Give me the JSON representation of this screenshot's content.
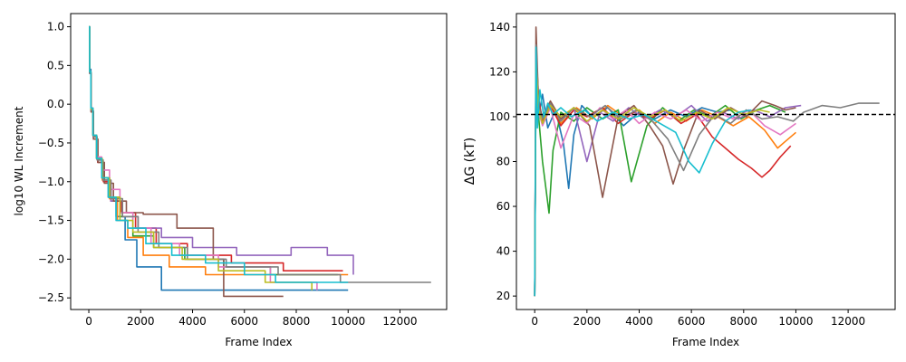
{
  "chart_data": [
    {
      "type": "line",
      "title": "",
      "xlabel": "Frame Index",
      "ylabel": "log10 WL Increment",
      "xlim": [
        -700,
        13800
      ],
      "ylim": [
        -2.65,
        1.17
      ],
      "xticks": [
        0,
        2000,
        4000,
        6000,
        8000,
        10000,
        12000
      ],
      "yticks": [
        -2.5,
        -2.0,
        -1.5,
        -1.0,
        -0.5,
        0.0,
        0.5,
        1.0
      ],
      "yticklabels": [
        "−2.5",
        "−2.0",
        "−1.5",
        "−1.0",
        "−0.5",
        "0.0",
        "0.5",
        "1.0"
      ],
      "grid": false,
      "legend": "none",
      "series": [
        {
          "color": "#1f77b4",
          "x": [
            0,
            30,
            80,
            160,
            300,
            500,
            750,
            1050,
            1400,
            1850,
            2800,
            10000
          ],
          "y": [
            1.0,
            0.45,
            -0.05,
            -0.4,
            -0.7,
            -0.95,
            -1.2,
            -1.45,
            -1.75,
            -2.1,
            -2.4,
            -2.4
          ]
        },
        {
          "color": "#ff7f0e",
          "x": [
            0,
            30,
            80,
            170,
            320,
            520,
            800,
            1100,
            1500,
            2100,
            3100,
            4500,
            10000
          ],
          "y": [
            1.0,
            0.4,
            -0.08,
            -0.42,
            -0.72,
            -0.98,
            -1.22,
            -1.5,
            -1.72,
            -1.95,
            -2.1,
            -2.2,
            -2.2
          ]
        },
        {
          "color": "#2ca02c",
          "x": [
            0,
            30,
            80,
            160,
            300,
            500,
            800,
            1200,
            1700,
            2500,
            3700,
            5200,
            7000,
            9600
          ],
          "y": [
            1.0,
            0.42,
            -0.06,
            -0.4,
            -0.7,
            -0.95,
            -1.2,
            -1.45,
            -1.7,
            -1.85,
            -2.0,
            -2.1,
            -2.2,
            -2.2
          ]
        },
        {
          "color": "#d62728",
          "x": [
            0,
            30,
            90,
            180,
            340,
            560,
            850,
            1250,
            1800,
            2600,
            3800,
            5500,
            7500,
            9800
          ],
          "y": [
            1.0,
            0.4,
            -0.1,
            -0.45,
            -0.75,
            -1.0,
            -1.25,
            -1.4,
            -1.6,
            -1.8,
            -1.95,
            -2.05,
            -2.15,
            -2.15
          ]
        },
        {
          "color": "#9467bd",
          "x": [
            0,
            30,
            80,
            170,
            320,
            550,
            850,
            1300,
            1900,
            2800,
            4000,
            5700,
            7800,
            9200,
            10200
          ],
          "y": [
            1.0,
            0.4,
            -0.08,
            -0.42,
            -0.72,
            -0.98,
            -1.25,
            -1.45,
            -1.6,
            -1.72,
            -1.85,
            -1.95,
            -1.85,
            -1.95,
            -2.2
          ]
        },
        {
          "color": "#8c564b",
          "x": [
            0,
            30,
            90,
            180,
            350,
            600,
            950,
            1450,
            2100,
            3400,
            4800,
            5200,
            7500
          ],
          "y": [
            1.0,
            0.4,
            -0.1,
            -0.45,
            -0.75,
            -1.02,
            -1.25,
            -1.4,
            -1.42,
            -1.6,
            -2.0,
            -2.48,
            -2.48
          ]
        },
        {
          "color": "#e377c2",
          "x": [
            0,
            30,
            80,
            160,
            300,
            500,
            800,
            1200,
            1700,
            2400,
            3500,
            5000,
            7000,
            8800
          ],
          "y": [
            1.0,
            0.42,
            -0.05,
            -0.4,
            -0.68,
            -0.85,
            -1.1,
            -1.4,
            -1.6,
            -1.8,
            -1.95,
            -2.1,
            -2.3,
            -2.4
          ]
        },
        {
          "color": "#7f7f7f",
          "x": [
            0,
            30,
            80,
            170,
            320,
            550,
            850,
            1300,
            1900,
            2700,
            3800,
            5300,
            7300,
            9700,
            10200,
            13200
          ],
          "y": [
            1.0,
            0.4,
            -0.08,
            -0.42,
            -0.72,
            -0.98,
            -1.22,
            -1.45,
            -1.65,
            -1.85,
            -2.0,
            -2.1,
            -2.2,
            -2.3,
            -2.3,
            -2.3
          ]
        },
        {
          "color": "#bcbd22",
          "x": [
            0,
            30,
            80,
            160,
            300,
            520,
            800,
            1200,
            1700,
            2500,
            3600,
            5000,
            6800,
            8600
          ],
          "y": [
            1.0,
            0.42,
            -0.06,
            -0.4,
            -0.7,
            -0.95,
            -1.2,
            -1.5,
            -1.65,
            -1.85,
            -2.0,
            -2.15,
            -2.3,
            -2.4
          ]
        },
        {
          "color": "#17becf",
          "x": [
            0,
            30,
            80,
            160,
            300,
            500,
            750,
            1050,
            1500,
            2200,
            3200,
            4500,
            6000,
            7200,
            10000
          ],
          "y": [
            1.0,
            0.42,
            -0.05,
            -0.4,
            -0.7,
            -0.95,
            -1.2,
            -1.5,
            -1.6,
            -1.8,
            -1.95,
            -2.05,
            -2.2,
            -2.3,
            -2.3
          ]
        }
      ]
    },
    {
      "type": "line",
      "title": "",
      "xlabel": "Frame Index",
      "ylabel": "ΔG (kT)",
      "xlim": [
        -700,
        13800
      ],
      "ylim": [
        14,
        146
      ],
      "xticks": [
        0,
        2000,
        4000,
        6000,
        8000,
        10000,
        12000
      ],
      "yticks": [
        20,
        40,
        60,
        80,
        100,
        120,
        140
      ],
      "reference_line": {
        "y": 101,
        "style": "dashed",
        "color": "#000000"
      },
      "grid": false,
      "legend": "none",
      "series": [
        {
          "color": "#1f77b4",
          "x": [
            0,
            50,
            150,
            300,
            500,
            800,
            1100,
            1300,
            1500,
            1800,
            2200,
            2800,
            3400,
            4000,
            4600,
            5200,
            5800,
            6400,
            7000,
            7500
          ],
          "y": [
            20,
            120,
            100,
            110,
            95,
            103,
            88,
            68,
            92,
            105,
            100,
            104,
            96,
            102,
            99,
            103,
            100,
            104,
            102,
            103
          ]
        },
        {
          "color": "#ff7f0e",
          "x": [
            0,
            50,
            150,
            300,
            600,
            1000,
            1600,
            2200,
            2800,
            3400,
            4000,
            4600,
            5200,
            5800,
            6400,
            7000,
            7600,
            8200,
            8800,
            9300,
            9600,
            10000
          ],
          "y": [
            20,
            125,
            105,
            98,
            106,
            97,
            104,
            99,
            105,
            100,
            103,
            97,
            102,
            98,
            103,
            100,
            96,
            100,
            94,
            86,
            89,
            93
          ]
        },
        {
          "color": "#2ca02c",
          "x": [
            0,
            50,
            150,
            300,
            450,
            550,
            700,
            1000,
            1500,
            2000,
            2600,
            3200,
            3700,
            4300,
            4900,
            5500,
            6100,
            6700,
            7300,
            7900,
            8500,
            9000,
            9600
          ],
          "y": [
            20,
            118,
            100,
            80,
            66,
            57,
            85,
            102,
            98,
            104,
            99,
            103,
            71,
            96,
            104,
            98,
            103,
            100,
            105,
            99,
            103,
            105,
            102
          ]
        },
        {
          "color": "#d62728",
          "x": [
            0,
            50,
            150,
            300,
            600,
            1000,
            1500,
            2000,
            2600,
            3200,
            3800,
            4400,
            5000,
            5600,
            6200,
            6800,
            7300,
            7800,
            8300,
            8700,
            9000,
            9400,
            9800
          ],
          "y": [
            20,
            130,
            108,
            98,
            105,
            96,
            103,
            100,
            104,
            97,
            102,
            99,
            103,
            97,
            101,
            91,
            86,
            81,
            77,
            73,
            76,
            82,
            87
          ]
        },
        {
          "color": "#9467bd",
          "x": [
            0,
            50,
            150,
            300,
            600,
            1000,
            1500,
            2000,
            2500,
            3000,
            3600,
            4200,
            4800,
            5400,
            6000,
            6600,
            7200,
            7800,
            8400,
            9000,
            9600,
            10200
          ],
          "y": [
            20,
            122,
            104,
            100,
            106,
            99,
            104,
            80,
            102,
            98,
            104,
            99,
            103,
            100,
            105,
            98,
            102,
            99,
            103,
            100,
            104,
            105
          ]
        },
        {
          "color": "#8c564b",
          "x": [
            0,
            50,
            150,
            300,
            600,
            1000,
            1500,
            2100,
            2600,
            3200,
            3800,
            4400,
            4900,
            5300,
            5700,
            6300,
            6900,
            7500,
            8100,
            8700,
            9200,
            9600,
            10000
          ],
          "y": [
            20,
            140,
            105,
            100,
            107,
            99,
            104,
            96,
            64,
            100,
            105,
            96,
            87,
            70,
            85,
            103,
            99,
            104,
            100,
            107,
            105,
            103,
            104
          ]
        },
        {
          "color": "#e377c2",
          "x": [
            0,
            50,
            150,
            300,
            600,
            1000,
            1500,
            2000,
            2500,
            3000,
            3500,
            4000,
            4600,
            5200,
            5800,
            6400,
            7000,
            7600,
            8200,
            8800,
            9400,
            10000
          ],
          "y": [
            20,
            128,
            102,
            96,
            104,
            86,
            101,
            97,
            104,
            99,
            103,
            97,
            102,
            99,
            103,
            98,
            102,
            99,
            103,
            96,
            92,
            97
          ]
        },
        {
          "color": "#7f7f7f",
          "x": [
            0,
            50,
            150,
            300,
            600,
            1000,
            1500,
            2100,
            2700,
            3300,
            3900,
            4500,
            5100,
            5700,
            6300,
            6900,
            7500,
            8100,
            8700,
            9300,
            9900,
            10300,
            11000,
            11700,
            12400,
            13200
          ],
          "y": [
            20,
            132,
            104,
            99,
            106,
            98,
            104,
            100,
            105,
            99,
            103,
            98,
            90,
            76,
            92,
            101,
            97,
            103,
            99,
            100,
            98,
            102,
            105,
            104,
            106,
            106
          ]
        },
        {
          "color": "#bcbd22",
          "x": [
            0,
            50,
            150,
            300,
            600,
            1000,
            1500,
            2000,
            2600,
            3200,
            3800,
            4400,
            5000,
            5600,
            6200,
            6800,
            7400,
            8000,
            8600,
            9000
          ],
          "y": [
            20,
            124,
            103,
            97,
            105,
            100,
            104,
            98,
            103,
            99,
            104,
            100,
            103,
            98,
            102,
            99,
            104,
            101,
            103,
            102
          ]
        },
        {
          "color": "#17becf",
          "x": [
            0,
            50,
            100,
            200,
            350,
            500,
            700,
            1000,
            1400,
            1900,
            2400,
            3000,
            3600,
            4200,
            4800,
            5400,
            5900,
            6300,
            6800,
            7300,
            7800,
            8300
          ],
          "y": [
            20,
            131,
            95,
            112,
            100,
            106,
            101,
            104,
            100,
            103,
            98,
            102,
            99,
            101,
            97,
            93,
            80,
            75,
            88,
            98,
            102,
            103
          ]
        }
      ]
    }
  ]
}
